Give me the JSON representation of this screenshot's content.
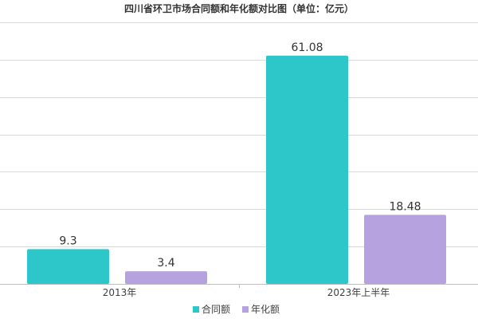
{
  "chart_data": {
    "type": "bar",
    "title": "四川省环卫市场合同额和年化额对比图（单位：亿元）",
    "categories": [
      "2013年",
      "2023年上半年"
    ],
    "series": [
      {
        "name": "合同额",
        "values": [
          9.3,
          61.08
        ],
        "labels": [
          "9.3",
          "61.08"
        ],
        "color": "#2ec7c9"
      },
      {
        "name": "年化额",
        "values": [
          3.4,
          18.48
        ],
        "labels": [
          "3.4",
          "18.48"
        ],
        "color": "#b6a2de"
      }
    ],
    "ylim": [
      0,
      70
    ],
    "grid": true,
    "legend_position": "bottom-center"
  }
}
